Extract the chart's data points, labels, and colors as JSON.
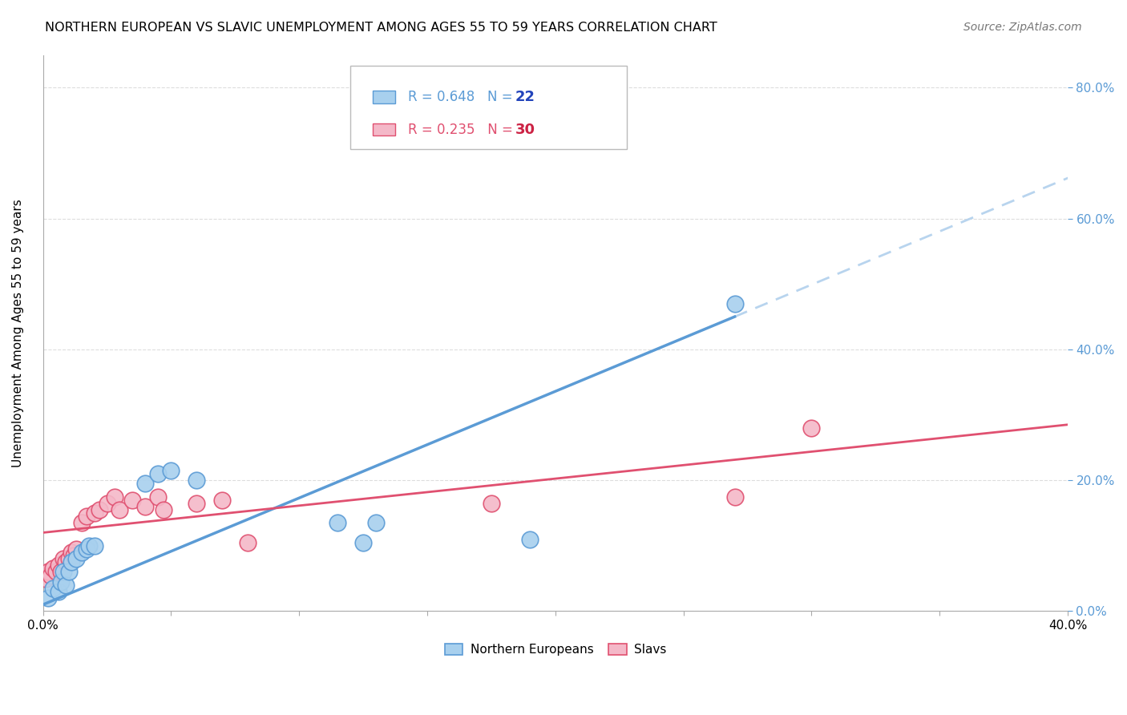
{
  "title": "NORTHERN EUROPEAN VS SLAVIC UNEMPLOYMENT AMONG AGES 55 TO 59 YEARS CORRELATION CHART",
  "source": "Source: ZipAtlas.com",
  "ylabel": "Unemployment Among Ages 55 to 59 years",
  "xlim": [
    0.0,
    0.4
  ],
  "ylim": [
    0.0,
    0.85
  ],
  "xticks": [
    0.0,
    0.05,
    0.1,
    0.15,
    0.2,
    0.25,
    0.3,
    0.35,
    0.4
  ],
  "yticks_right": [
    0.0,
    0.2,
    0.4,
    0.6,
    0.8
  ],
  "ytick_labels_right": [
    "0.0%",
    "20.0%",
    "40.0%",
    "60.0%",
    "80.0%"
  ],
  "northern_europeans": {
    "label": "Northern Europeans",
    "R": 0.648,
    "N": 22,
    "color": "#A8D0EE",
    "edge_color": "#5B9BD5",
    "x": [
      0.002,
      0.004,
      0.006,
      0.007,
      0.008,
      0.009,
      0.01,
      0.011,
      0.013,
      0.015,
      0.017,
      0.018,
      0.02,
      0.04,
      0.045,
      0.05,
      0.06,
      0.115,
      0.125,
      0.13,
      0.19,
      0.27
    ],
    "y": [
      0.02,
      0.035,
      0.03,
      0.045,
      0.06,
      0.04,
      0.06,
      0.075,
      0.08,
      0.09,
      0.095,
      0.1,
      0.1,
      0.195,
      0.21,
      0.215,
      0.2,
      0.135,
      0.105,
      0.135,
      0.11,
      0.47
    ]
  },
  "slavs": {
    "label": "Slavs",
    "R": 0.235,
    "N": 30,
    "color": "#F4B8C8",
    "edge_color": "#E05070",
    "x": [
      0.001,
      0.002,
      0.003,
      0.004,
      0.005,
      0.006,
      0.007,
      0.008,
      0.009,
      0.01,
      0.011,
      0.012,
      0.013,
      0.015,
      0.017,
      0.02,
      0.022,
      0.025,
      0.028,
      0.03,
      0.035,
      0.04,
      0.045,
      0.047,
      0.06,
      0.07,
      0.08,
      0.175,
      0.27,
      0.3
    ],
    "y": [
      0.05,
      0.06,
      0.055,
      0.065,
      0.06,
      0.07,
      0.06,
      0.08,
      0.075,
      0.08,
      0.09,
      0.085,
      0.095,
      0.135,
      0.145,
      0.15,
      0.155,
      0.165,
      0.175,
      0.155,
      0.17,
      0.16,
      0.175,
      0.155,
      0.165,
      0.17,
      0.105,
      0.165,
      0.175,
      0.28
    ]
  },
  "ne_reg_color": "#5B9BD5",
  "slavs_reg_color": "#E05070",
  "ne_dash_color": "#B8D4EE",
  "background_color": "#FFFFFF",
  "grid_color": "#DDDDDD",
  "title_fontsize": 11.5,
  "source_fontsize": 10
}
